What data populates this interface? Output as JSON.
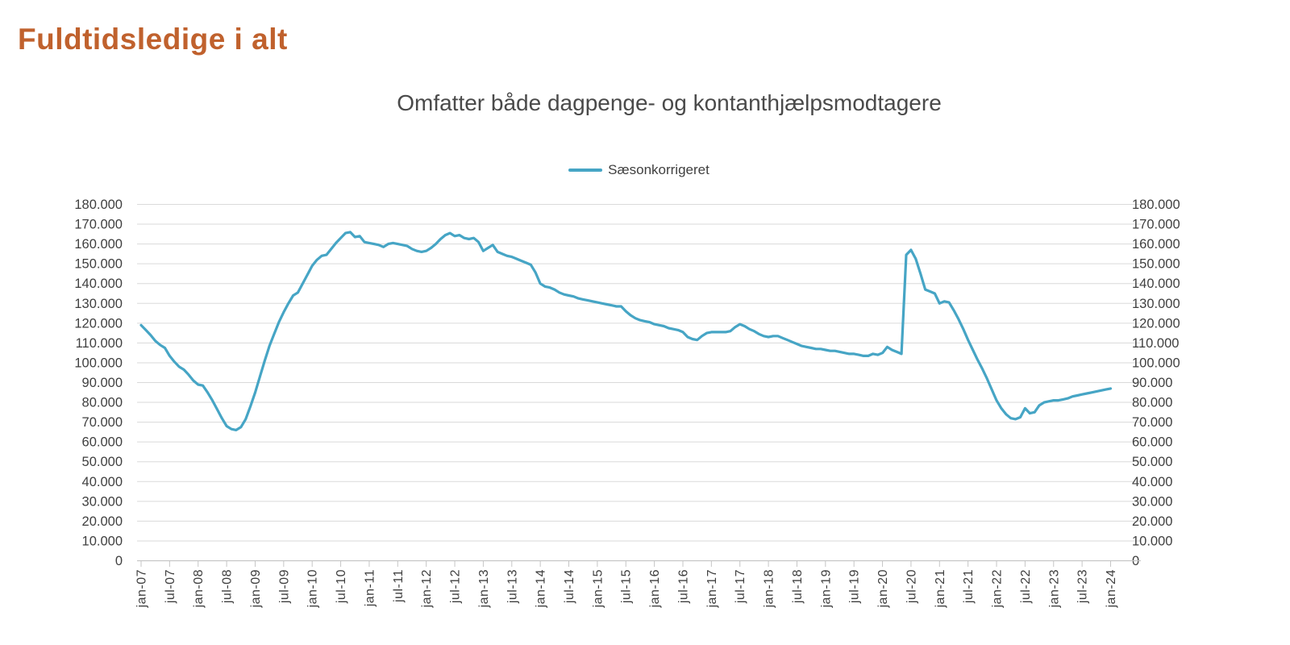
{
  "page": {
    "title": "Fuldtidsledige i alt"
  },
  "chart": {
    "title": "Omfatter både dagpenge- og kontanthjælpsmodtagere",
    "legend": {
      "label": "Sæsonkorrigeret"
    },
    "colors": {
      "page_title_text": "#C0612D",
      "chart_title_text": "#4A4A4A",
      "axis_label_text": "#3F3F3F",
      "legend_text": "#3F3F3F",
      "gridline": "#DADADA",
      "axis_line": "#C6C6C6",
      "series_line": "#46A5C5"
    }
  },
  "chart_data": {
    "type": "line",
    "title": "Omfatter både dagpenge- og kontanthjælpsmodtagere",
    "frequency": "monthly",
    "x_start": "jan-07",
    "x_end": "jan-24",
    "grid": true,
    "legend_position": "top",
    "ylim": [
      0,
      180000
    ],
    "y_step": 10000,
    "y_tick_labels": [
      "180.000",
      "170.000",
      "160.000",
      "150.000",
      "140.000",
      "130.000",
      "120.000",
      "110.000",
      "100.000",
      "90.000",
      "80.000",
      "70.000",
      "60.000",
      "50.000",
      "40.000",
      "30.000",
      "20.000",
      "10.000",
      "0"
    ],
    "x_tick_labels": [
      "jan-07",
      "jul-07",
      "jan-08",
      "jul-08",
      "jan-09",
      "jul-09",
      "jan-10",
      "jul-10",
      "jan-11",
      "jul-11",
      "jan-12",
      "jul-12",
      "jan-13",
      "jul-13",
      "jan-14",
      "jul-14",
      "jan-15",
      "jul-15",
      "jan-16",
      "jul-16",
      "jan-17",
      "jul-17",
      "jan-18",
      "jul-18",
      "jan-19",
      "jul-19",
      "jan-20",
      "jul-20",
      "jan-21",
      "jul-21",
      "jan-22",
      "jul-22",
      "jan-23",
      "jul-23",
      "jan-24"
    ],
    "series": [
      {
        "name": "Sæsonkorrigeret",
        "color": "#46A5C5",
        "values": [
          119000,
          116500,
          114000,
          111000,
          109000,
          107500,
          103500,
          100500,
          98000,
          96500,
          94000,
          91000,
          89000,
          88500,
          85000,
          81000,
          76500,
          72000,
          68000,
          66500,
          66000,
          67500,
          71500,
          78000,
          85000,
          93000,
          101000,
          108500,
          114500,
          120500,
          125500,
          130000,
          134000,
          135500,
          140000,
          144500,
          149000,
          152000,
          154000,
          154500,
          157500,
          160500,
          163000,
          165500,
          166000,
          163500,
          164000,
          161000,
          160500,
          160000,
          159500,
          158500,
          160000,
          160500,
          160000,
          159500,
          159000,
          157500,
          156500,
          156000,
          156500,
          158000,
          160000,
          162500,
          164500,
          165500,
          164000,
          164500,
          163000,
          162500,
          163000,
          161000,
          156500,
          158000,
          159500,
          156000,
          155000,
          154000,
          153500,
          152500,
          151500,
          150500,
          149500,
          145500,
          140000,
          138500,
          138000,
          137000,
          135500,
          134500,
          134000,
          133500,
          132500,
          132000,
          131500,
          131000,
          130500,
          130000,
          129500,
          129000,
          128500,
          128500,
          126000,
          124000,
          122500,
          121500,
          121000,
          120500,
          119500,
          119000,
          118500,
          117500,
          117000,
          116500,
          115500,
          113000,
          112000,
          111500,
          113500,
          115000,
          115500,
          115500,
          115500,
          115500,
          116000,
          118000,
          119500,
          118500,
          117000,
          116000,
          114500,
          113500,
          113000,
          113500,
          113500,
          112500,
          111500,
          110500,
          109500,
          108500,
          108000,
          107500,
          107000,
          107000,
          106500,
          106000,
          106000,
          105500,
          105000,
          104500,
          104500,
          104000,
          103500,
          103500,
          104500,
          104000,
          105000,
          108000,
          106500,
          105500,
          104500,
          154500,
          157000,
          152500,
          145000,
          137000,
          136000,
          135000,
          130000,
          131000,
          130500,
          126500,
          122000,
          117000,
          111500,
          106500,
          101500,
          97000,
          92000,
          86500,
          81000,
          77000,
          74000,
          72000,
          71500,
          72500,
          77000,
          74500,
          75000,
          78500,
          80000,
          80500,
          81000,
          81000,
          81500,
          82000,
          83000,
          83500,
          84000,
          84500,
          85000,
          85500,
          86000,
          86500,
          87000
        ]
      }
    ]
  }
}
